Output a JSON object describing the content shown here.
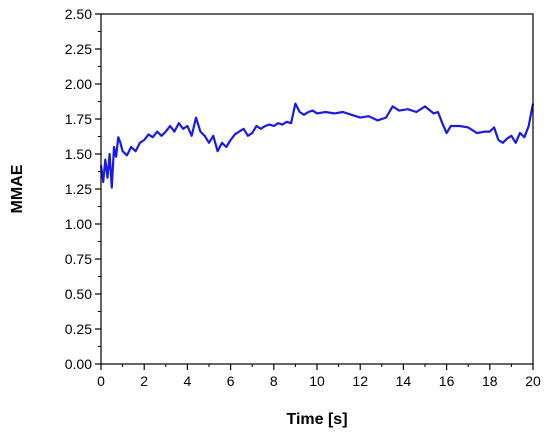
{
  "chart_data": {
    "type": "line",
    "title": "",
    "xlabel": "Time [s]",
    "ylabel": "MMAE",
    "xlim": [
      0,
      20
    ],
    "ylim": [
      0,
      2.5
    ],
    "x_ticks": [
      0,
      2,
      4,
      6,
      8,
      10,
      12,
      14,
      16,
      18,
      20
    ],
    "x_tick_labels": [
      "0",
      "2",
      "4",
      "6",
      "8",
      "10",
      "12",
      "14",
      "16",
      "18",
      "20"
    ],
    "y_ticks": [
      0,
      0.25,
      0.5,
      0.75,
      1.0,
      1.25,
      1.5,
      1.75,
      2.0,
      2.25,
      2.5
    ],
    "y_tick_labels": [
      "0.00",
      "0.25",
      "0.50",
      "0.75",
      "1.00",
      "1.25",
      "1.50",
      "1.75",
      "2.00",
      "2.25",
      "2.50"
    ],
    "grid": false,
    "line_color": "#1a1ae6",
    "series": [
      {
        "x": [
          0.0,
          0.1,
          0.2,
          0.3,
          0.4,
          0.5,
          0.6,
          0.7,
          0.8,
          0.9,
          1.0,
          1.2,
          1.4,
          1.6,
          1.8,
          2.0,
          2.2,
          2.4,
          2.6,
          2.8,
          3.0,
          3.2,
          3.4,
          3.6,
          3.8,
          4.0,
          4.2,
          4.4,
          4.6,
          4.8,
          5.0,
          5.2,
          5.4,
          5.6,
          5.8,
          6.0,
          6.2,
          6.4,
          6.6,
          6.8,
          7.0,
          7.2,
          7.4,
          7.6,
          7.8,
          8.0,
          8.2,
          8.4,
          8.6,
          8.8,
          9.0,
          9.2,
          9.4,
          9.6,
          9.8,
          10.0,
          10.4,
          10.8,
          11.2,
          11.6,
          12.0,
          12.4,
          12.8,
          13.2,
          13.5,
          13.8,
          14.2,
          14.6,
          15.0,
          15.4,
          15.6,
          15.8,
          16.0,
          16.2,
          16.6,
          17.0,
          17.4,
          17.8,
          18.0,
          18.2,
          18.4,
          18.6,
          18.8,
          19.0,
          19.2,
          19.4,
          19.6,
          19.8,
          20.0
        ],
        "y": [
          1.42,
          1.3,
          1.46,
          1.33,
          1.5,
          1.26,
          1.55,
          1.48,
          1.62,
          1.58,
          1.52,
          1.49,
          1.55,
          1.52,
          1.58,
          1.6,
          1.64,
          1.62,
          1.66,
          1.63,
          1.66,
          1.7,
          1.66,
          1.72,
          1.68,
          1.7,
          1.63,
          1.76,
          1.66,
          1.63,
          1.58,
          1.63,
          1.52,
          1.58,
          1.55,
          1.6,
          1.64,
          1.66,
          1.68,
          1.63,
          1.65,
          1.7,
          1.68,
          1.7,
          1.71,
          1.7,
          1.72,
          1.71,
          1.73,
          1.72,
          1.86,
          1.8,
          1.78,
          1.8,
          1.81,
          1.79,
          1.8,
          1.79,
          1.8,
          1.78,
          1.76,
          1.77,
          1.74,
          1.76,
          1.84,
          1.81,
          1.82,
          1.8,
          1.84,
          1.79,
          1.8,
          1.72,
          1.65,
          1.7,
          1.7,
          1.69,
          1.65,
          1.66,
          1.66,
          1.69,
          1.6,
          1.58,
          1.61,
          1.63,
          1.58,
          1.65,
          1.62,
          1.7,
          1.86
        ]
      }
    ]
  }
}
